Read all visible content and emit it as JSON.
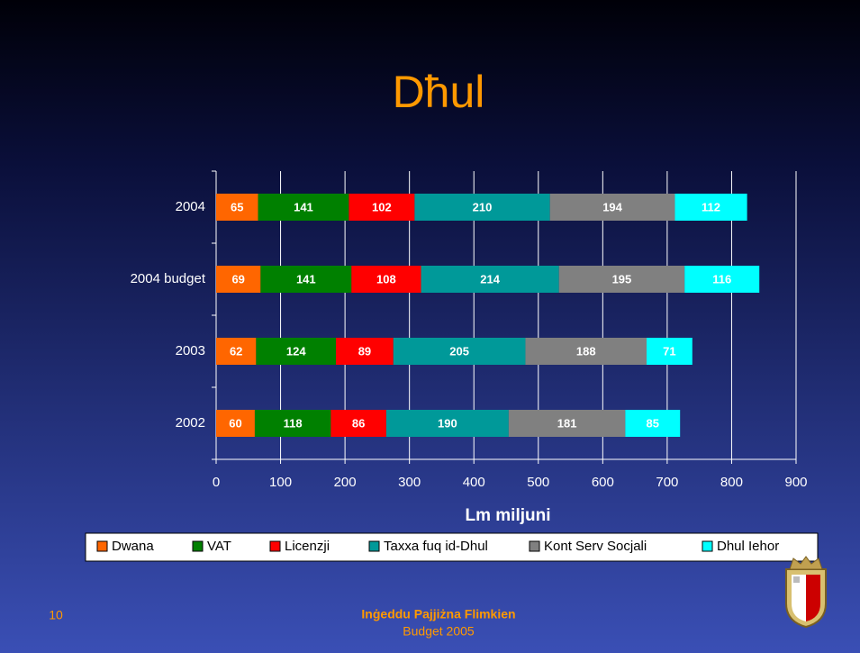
{
  "chart_data": {
    "type": "stacked-bar-horizontal",
    "title": "Dħul",
    "x_label": "Lm miljuni",
    "categories": [
      "2004",
      "2004 budget",
      "2003",
      "2002"
    ],
    "series": [
      {
        "name": "Dwana",
        "color": "#ff6600",
        "values": [
          65,
          69,
          62,
          60
        ]
      },
      {
        "name": "VAT",
        "color": "#008000",
        "values": [
          141,
          141,
          124,
          118
        ]
      },
      {
        "name": "Licenzji",
        "color": "#ff0000",
        "values": [
          102,
          108,
          89,
          86
        ]
      },
      {
        "name": "Taxxa fuq id-Dhul",
        "color": "#009999",
        "values": [
          210,
          214,
          205,
          190
        ]
      },
      {
        "name": "Kont Serv Socjali",
        "color": "#808080",
        "values": [
          194,
          195,
          188,
          181
        ]
      },
      {
        "name": "Dhul Iehor",
        "color": "#00ffff",
        "values": [
          112,
          116,
          71,
          85
        ]
      }
    ],
    "xlim": [
      0,
      900
    ],
    "xticks": [
      0,
      100,
      200,
      300,
      400,
      500,
      600,
      700,
      800,
      900
    ],
    "grid": true,
    "legend": "bottom"
  },
  "footer": {
    "page_number": "10",
    "slogan": "Inġeddu Pajjiżna Flimkien",
    "subtitle": "Budget 2005"
  }
}
